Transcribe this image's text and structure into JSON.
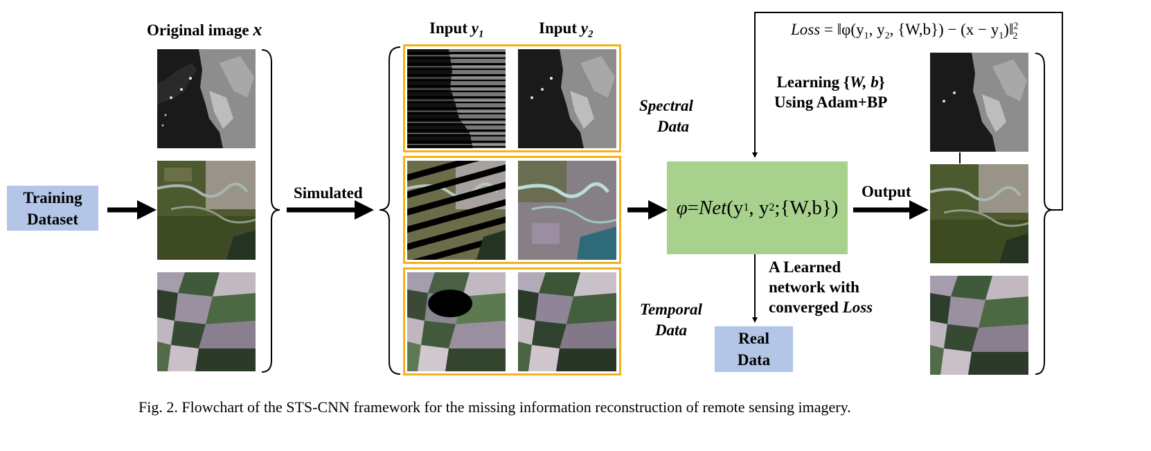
{
  "headers": {
    "original": "Original image",
    "original_var": "x",
    "input1": "Input",
    "input1_var": "y",
    "input1_sub": "1",
    "input2": "Input",
    "input2_var": "y",
    "input2_sub": "2"
  },
  "training_box": {
    "line1": "Training",
    "line2": "Dataset"
  },
  "simulated_label": "Simulated",
  "spectral_label": {
    "line1": "Spectral",
    "line2": "Data"
  },
  "temporal_label": {
    "line1": "Temporal",
    "line2": "Data"
  },
  "net_formula": {
    "phi": "φ",
    "eq": " = ",
    "net": "Net",
    "args": "(y",
    "s1": "1",
    "c1": ", y",
    "s2": "2",
    "rest": ";{W,b})"
  },
  "loss_formula": "Loss = ‖φ(y1, y2, {W,b}) − (x − y1)‖",
  "loss_parts": {
    "loss": "Loss",
    "eq": " = ",
    "open": "‖φ(y",
    "s1": "1",
    "c1": ", y",
    "s2": "2",
    "mid": ", {W,b}) − (x − y",
    "s3": "1",
    "close": ")‖",
    "sup": "2",
    "sub": "2"
  },
  "learning_label": {
    "line1_a": "Learning {",
    "line1_b": "W, b",
    "line1_c": "}",
    "line2": "Using Adam+BP"
  },
  "output_label": "Output",
  "learned_label": {
    "line1": "A Learned",
    "line2": "network with",
    "line3_a": "converged ",
    "line3_b": "Loss"
  },
  "real_data_box": {
    "line1": "Real",
    "line2": "Data"
  },
  "caption": "Fig. 2. Flowchart of the STS-CNN framework for the missing information reconstruction of remote sensing imagery.",
  "colors": {
    "training_box": "#b3c6e7",
    "net_box": "#a9d18e",
    "highlight_border": "#f2b21a",
    "arrows": "#000000"
  },
  "images": [
    "grayscale-coastal-image",
    "rgb-river-image",
    "rgb-farmland-image",
    "striped-grayscale-image",
    "striped-river-image",
    "cloud-masked-farmland-image"
  ]
}
